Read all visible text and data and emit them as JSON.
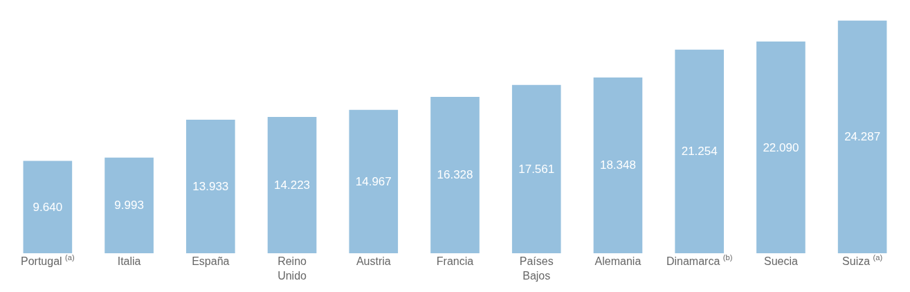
{
  "chart_data": {
    "type": "bar",
    "categories": [
      "Portugal $^{(a)}$",
      "Italia",
      "España",
      "Reino\nUnido",
      "Austria",
      "Francia",
      "Países\nBajos",
      "Alemania",
      "Dinamarca $^{(b)}$",
      "Suecia",
      "Suiza $^{(a)}$"
    ],
    "values": [
      9640,
      9993,
      13933,
      14223,
      14967,
      16328,
      17561,
      18348,
      21254,
      22090,
      24287
    ],
    "value_labels": [
      "9.640",
      "9.993",
      "13.933",
      "14.223",
      "14.967",
      "16.328",
      "17.561",
      "18.348",
      "21.254",
      "22.090",
      "24.287"
    ],
    "color": "#96c0de"
  }
}
